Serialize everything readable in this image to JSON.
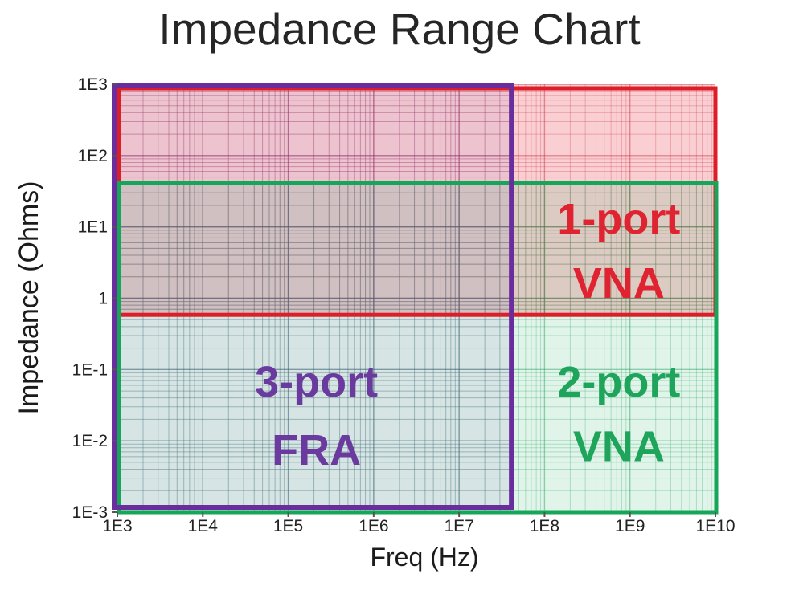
{
  "title": "Impedance Range Chart",
  "colors": {
    "title_text": "#262626",
    "axis_text": "#1b1b1b",
    "tick_text": "#222222",
    "tick_mark": "#555555",
    "red_border": "#dd1d28",
    "green_border": "#16a65a",
    "purple_border": "#6a2d9e"
  },
  "axes": {
    "x": {
      "label": "Freq (Hz)",
      "scale": "log",
      "ticks": [
        "1E3",
        "1E4",
        "1E5",
        "1E6",
        "1E7",
        "1E8",
        "1E9",
        "1E10"
      ]
    },
    "y": {
      "label": "Impedance (Ohms)",
      "scale": "log",
      "ticks": [
        "1E3",
        "1E2",
        "1E1",
        "1",
        "1E-1",
        "1E-2",
        "1E-3"
      ]
    }
  },
  "chart_data": {
    "type": "area",
    "subtype": "log-log instrument range regions",
    "title": "Impedance Range Chart",
    "xlabel": "Freq (Hz)",
    "ylabel": "Impedance (Ohms)",
    "x_log_range": [
      3,
      10
    ],
    "y_log_range": [
      -3,
      3
    ],
    "xlim_hz": [
      1000.0,
      10000000000.0
    ],
    "ylim_ohms": [
      0.001,
      1000.0
    ],
    "grid": "log minor and major gridlines, tinted by overlapping region colors",
    "legend_position": "none (labels inside regions)",
    "regions": [
      {
        "name": "1-port VNA",
        "label_lines": [
          "1-port",
          "VNA"
        ],
        "freq_hz": [
          1000.0,
          10000000000.0
        ],
        "impedance_ohms": [
          0.6,
          1000.0
        ],
        "border_color": "#dd1d28",
        "fill_rgba": "rgba(232,70,85,0.26)",
        "grid_minor_rgba": "rgba(210,60,70,0.30)",
        "grid_major_rgba": "rgba(200,40,55,0.45)",
        "label_color": "#e02330",
        "label_log_f": 8.87,
        "label_log_z": [
          1.12,
          0.22
        ]
      },
      {
        "name": "2-port VNA",
        "label_lines": [
          "2-port",
          "VNA"
        ],
        "freq_hz": [
          1000.0,
          10000000000.0
        ],
        "impedance_ohms": [
          0.001,
          40
        ],
        "border_color": "#16a65a",
        "fill_rgba": "rgba(50,180,110,0.15)",
        "grid_minor_rgba": "rgba(30,160,90,0.28)",
        "grid_major_rgba": "rgba(20,150,80,0.42)",
        "label_color": "#1fa45c",
        "label_log_f": 8.87,
        "label_log_z": [
          -1.165,
          -2.07
        ]
      },
      {
        "name": "3-port FRA",
        "label_lines": [
          "3-port",
          "FRA"
        ],
        "freq_hz": [
          1000.0,
          40000000.0
        ],
        "impedance_ohms": [
          0.001,
          1000.0
        ],
        "border_color": "#6a2d9e",
        "fill_rgba": "rgba(130,100,180,0.10)",
        "grid_minor_rgba": "rgba(110,70,160,0.20)",
        "grid_major_rgba": "rgba(100,60,150,0.30)",
        "label_color": "#6a3a9e",
        "label_log_f": 5.33,
        "label_log_z": [
          -1.165,
          -2.12
        ]
      }
    ]
  }
}
